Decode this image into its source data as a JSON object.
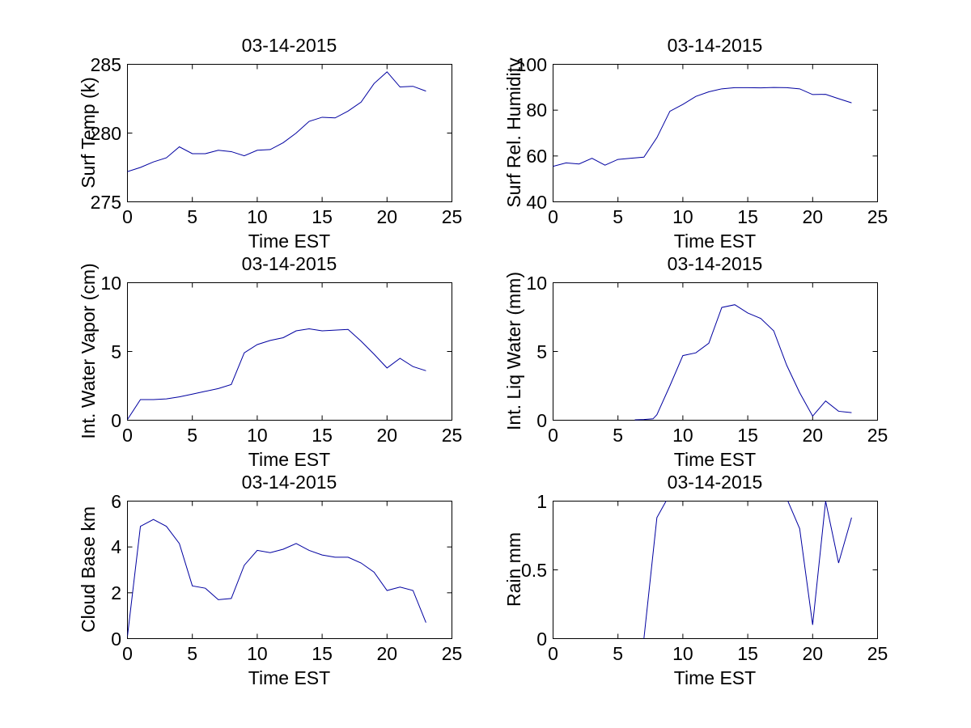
{
  "figure": {
    "background": "#ffffff",
    "axis_color": "#000000",
    "text_color": "#000000",
    "line_color": "#0000A0"
  },
  "chart_data": [
    {
      "id": "surf-temp",
      "type": "line",
      "title": "03-14-2015",
      "xlabel": "Time EST",
      "ylabel": "Surf Temp (k)",
      "xlim": [
        0,
        25
      ],
      "ylim": [
        275,
        285
      ],
      "x_ticks": [
        0,
        5,
        10,
        15,
        20,
        25
      ],
      "y_ticks": [
        275,
        280,
        285
      ],
      "grid": false,
      "legend": null,
      "x": [
        0,
        1,
        2,
        3,
        4,
        5,
        6,
        7,
        8,
        9,
        10,
        11,
        12,
        13,
        14,
        15,
        16,
        17,
        18,
        19,
        20,
        21,
        22,
        23
      ],
      "y": [
        277.2,
        277.5,
        277.9,
        278.2,
        279.0,
        278.5,
        278.5,
        278.75,
        278.65,
        278.35,
        278.75,
        278.8,
        279.3,
        280.0,
        280.85,
        281.15,
        281.1,
        281.6,
        282.25,
        283.6,
        284.45,
        283.35,
        283.4,
        283.05
      ]
    },
    {
      "id": "surf-rel-humidity",
      "type": "line",
      "title": "03-14-2015",
      "xlabel": "Time EST",
      "ylabel": "Surf Rel. Humidity",
      "xlim": [
        0,
        25
      ],
      "ylim": [
        40,
        100
      ],
      "x_ticks": [
        0,
        5,
        10,
        15,
        20,
        25
      ],
      "y_ticks": [
        40,
        60,
        80,
        100
      ],
      "grid": false,
      "legend": null,
      "x": [
        0,
        1,
        2,
        3,
        4,
        5,
        6,
        7,
        8,
        9,
        10,
        11,
        12,
        13,
        14,
        15,
        16,
        17,
        18,
        19,
        20,
        21,
        22,
        23
      ],
      "y": [
        55.5,
        57,
        56.5,
        59,
        56,
        58.5,
        59,
        59.5,
        68,
        79.5,
        82.5,
        86,
        88,
        89.3,
        89.8,
        89.8,
        89.7,
        89.9,
        89.8,
        89.3,
        86.8,
        86.9,
        85,
        83.2
      ]
    },
    {
      "id": "int-water-vapor",
      "type": "line",
      "title": "03-14-2015",
      "xlabel": "Time EST",
      "ylabel": "Int. Water Vapor (cm)",
      "xlim": [
        0,
        25
      ],
      "ylim": [
        0,
        10
      ],
      "x_ticks": [
        0,
        5,
        10,
        15,
        20,
        25
      ],
      "y_ticks": [
        0,
        5,
        10
      ],
      "grid": false,
      "legend": null,
      "x": [
        0,
        1,
        2,
        3,
        4,
        5,
        6,
        7,
        8,
        9,
        10,
        11,
        12,
        13,
        14,
        15,
        16,
        17,
        18,
        19,
        20,
        21,
        22,
        23
      ],
      "y": [
        0.05,
        1.5,
        1.5,
        1.55,
        1.7,
        1.9,
        2.1,
        2.3,
        2.6,
        4.9,
        5.5,
        5.8,
        6.0,
        6.5,
        6.65,
        6.5,
        6.55,
        6.6,
        5.75,
        4.8,
        3.8,
        4.5,
        3.9,
        3.6
      ]
    },
    {
      "id": "int-liq-water",
      "type": "line",
      "title": "03-14-2015",
      "xlabel": "Time EST",
      "ylabel": "Int. Liq Water (mm)",
      "xlim": [
        0,
        25
      ],
      "ylim": [
        0,
        10
      ],
      "x_ticks": [
        0,
        5,
        10,
        15,
        20,
        25
      ],
      "y_ticks": [
        0,
        5,
        10
      ],
      "grid": false,
      "legend": null,
      "x": [
        6.3,
        7,
        7.7,
        8,
        9,
        10,
        11,
        12,
        13,
        14,
        15,
        16,
        17,
        18,
        19,
        20,
        21,
        22,
        23
      ],
      "y": [
        0.03,
        0.05,
        0.1,
        0.4,
        2.5,
        4.7,
        4.9,
        5.6,
        8.2,
        8.4,
        7.8,
        7.4,
        6.5,
        4.0,
        2.0,
        0.3,
        1.4,
        0.65,
        0.55
      ]
    },
    {
      "id": "cloud-base",
      "type": "line",
      "title": "03-14-2015",
      "xlabel": "Time EST",
      "ylabel": "Cloud Base km",
      "xlim": [
        0,
        25
      ],
      "ylim": [
        0,
        6
      ],
      "x_ticks": [
        0,
        5,
        10,
        15,
        20,
        25
      ],
      "y_ticks": [
        0,
        2,
        4,
        6
      ],
      "grid": false,
      "legend": null,
      "x": [
        0,
        1,
        2,
        3,
        4,
        5,
        6,
        7,
        8,
        9,
        10,
        11,
        12,
        13,
        14,
        15,
        16,
        17,
        18,
        19,
        20,
        21,
        22,
        23
      ],
      "y": [
        0.1,
        4.9,
        5.2,
        4.9,
        4.15,
        2.3,
        2.2,
        1.7,
        1.75,
        3.2,
        3.85,
        3.75,
        3.9,
        4.15,
        3.85,
        3.65,
        3.55,
        3.55,
        3.3,
        2.9,
        2.1,
        2.25,
        2.1,
        0.7
      ]
    },
    {
      "id": "rain",
      "type": "line",
      "title": "03-14-2015",
      "xlabel": "Time EST",
      "ylabel": "Rain mm",
      "xlim": [
        0,
        25
      ],
      "ylim": [
        0,
        1
      ],
      "x_ticks": [
        0,
        5,
        10,
        15,
        20,
        25
      ],
      "y_ticks": [
        0,
        0.5,
        1
      ],
      "grid": false,
      "legend": null,
      "clipped_above_ymax": true,
      "x": [
        7,
        8,
        9,
        10,
        11,
        12,
        13,
        14,
        15,
        16,
        17,
        18,
        19,
        20,
        21,
        22,
        23
      ],
      "y": [
        0,
        0.88,
        1.05,
        1.5,
        1.5,
        1.5,
        1.5,
        1.5,
        1.5,
        1.5,
        1.5,
        1.02,
        0.8,
        0.1,
        1.0,
        0.55,
        0.88
      ]
    }
  ]
}
